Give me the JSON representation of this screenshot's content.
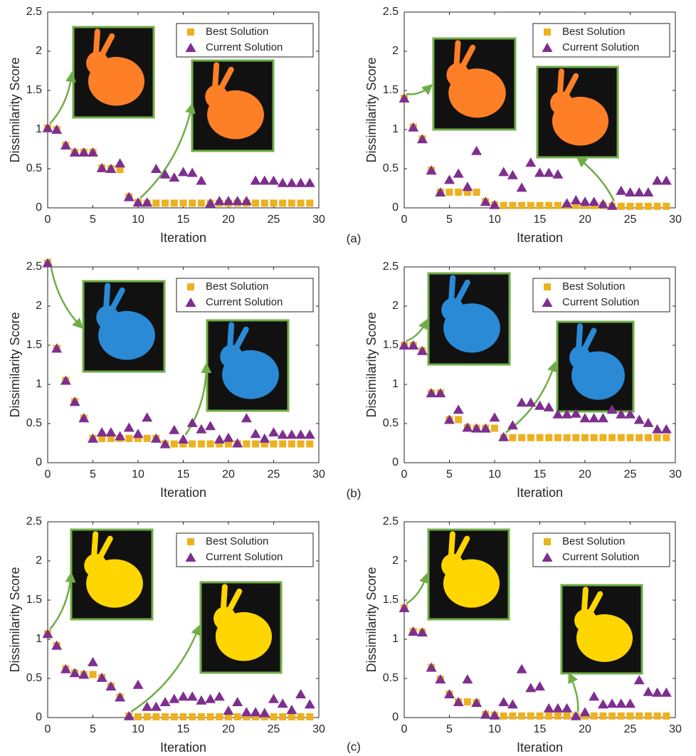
{
  "panel_labels": [
    "(a)",
    "(b)",
    "(c)"
  ],
  "chart_data": [
    {
      "type": "scatter",
      "xlabel": "Iteration",
      "ylabel": "Dissimilarity Score",
      "legend": "upper right",
      "x": [
        0,
        1,
        2,
        3,
        4,
        5,
        6,
        7,
        8,
        9,
        10,
        11,
        12,
        13,
        14,
        15,
        16,
        17,
        18,
        19,
        20,
        21,
        22,
        23,
        24,
        25,
        26,
        27,
        28,
        29
      ],
      "xlim": [
        0,
        30
      ],
      "xticks": [
        0,
        5,
        10,
        15,
        20,
        25,
        30
      ],
      "ylim": [
        0,
        2.5
      ],
      "yticks": [
        0,
        0.5,
        1,
        1.5,
        2,
        2.5
      ],
      "series": [
        {
          "name": "Best Solution",
          "color": "#EDB120",
          "marker": "square",
          "values": [
            1.02,
            1.0,
            0.8,
            0.71,
            0.71,
            0.71,
            0.51,
            0.5,
            0.49,
            0.14,
            0.07,
            0.06,
            0.06,
            0.06,
            0.06,
            0.06,
            0.06,
            0.06,
            0.06,
            0.06,
            0.06,
            0.06,
            0.06,
            0.06,
            0.06,
            0.06,
            0.06,
            0.06,
            0.06,
            0.06
          ]
        },
        {
          "name": "Current Solution",
          "color": "#7E2F8E",
          "marker": "triangle",
          "values": [
            1.02,
            1.0,
            0.8,
            0.71,
            0.71,
            0.71,
            0.51,
            0.5,
            0.57,
            0.14,
            0.07,
            0.07,
            0.5,
            0.43,
            0.39,
            0.46,
            0.45,
            0.35,
            0.06,
            0.09,
            0.09,
            0.09,
            0.09,
            0.35,
            0.35,
            0.35,
            0.32,
            0.32,
            0.32,
            0.32
          ]
        }
      ]
    },
    {
      "type": "scatter",
      "xlabel": "Iteration",
      "ylabel": "Dissimilarity Score",
      "legend": "upper right",
      "x": [
        0,
        1,
        2,
        3,
        4,
        5,
        6,
        7,
        8,
        9,
        10,
        11,
        12,
        13,
        14,
        15,
        16,
        17,
        18,
        19,
        20,
        21,
        22,
        23,
        24,
        25,
        26,
        27,
        28,
        29
      ],
      "xlim": [
        0,
        30
      ],
      "xticks": [
        0,
        5,
        10,
        15,
        20,
        25,
        30
      ],
      "ylim": [
        0,
        2.5
      ],
      "yticks": [
        0,
        0.5,
        1,
        1.5,
        2,
        2.5
      ],
      "series": [
        {
          "name": "Best Solution",
          "color": "#EDB120",
          "marker": "square",
          "values": [
            1.4,
            1.03,
            0.88,
            0.48,
            0.2,
            0.2,
            0.2,
            0.2,
            0.2,
            0.08,
            0.04,
            0.03,
            0.03,
            0.03,
            0.03,
            0.03,
            0.03,
            0.03,
            0.03,
            0.03,
            0.03,
            0.03,
            0.03,
            0.02,
            0.02,
            0.02,
            0.02,
            0.02,
            0.02,
            0.02
          ]
        },
        {
          "name": "Current Solution",
          "color": "#7E2F8E",
          "marker": "triangle",
          "values": [
            1.4,
            1.03,
            0.88,
            0.48,
            0.2,
            0.36,
            0.44,
            0.27,
            0.73,
            0.08,
            0.04,
            0.46,
            0.42,
            0.26,
            0.58,
            0.45,
            0.45,
            0.43,
            0.06,
            0.1,
            0.08,
            0.08,
            0.05,
            0.03,
            0.22,
            0.2,
            0.2,
            0.2,
            0.35,
            0.35
          ]
        }
      ]
    },
    {
      "type": "scatter",
      "xlabel": "Iteration",
      "ylabel": "Dissimilarity Score",
      "legend": "upper right",
      "x": [
        0,
        1,
        2,
        3,
        4,
        5,
        6,
        7,
        8,
        9,
        10,
        11,
        12,
        13,
        14,
        15,
        16,
        17,
        18,
        19,
        20,
        21,
        22,
        23,
        24,
        25,
        26,
        27,
        28,
        29
      ],
      "xlim": [
        0,
        30
      ],
      "xticks": [
        0,
        5,
        10,
        15,
        20,
        25,
        30
      ],
      "ylim": [
        0,
        2.5
      ],
      "yticks": [
        0,
        0.5,
        1,
        1.5,
        2,
        2.5
      ],
      "series": [
        {
          "name": "Best Solution",
          "color": "#EDB120",
          "marker": "square",
          "values": [
            2.55,
            1.46,
            1.05,
            0.78,
            0.57,
            0.31,
            0.31,
            0.31,
            0.31,
            0.31,
            0.31,
            0.31,
            0.31,
            0.24,
            0.24,
            0.24,
            0.24,
            0.24,
            0.24,
            0.24,
            0.24,
            0.24,
            0.24,
            0.24,
            0.24,
            0.24,
            0.24,
            0.24,
            0.24,
            0.24
          ]
        },
        {
          "name": "Current Solution",
          "color": "#7E2F8E",
          "marker": "triangle",
          "values": [
            2.55,
            1.46,
            1.05,
            0.78,
            0.57,
            0.31,
            0.39,
            0.39,
            0.34,
            0.45,
            0.37,
            0.58,
            0.31,
            0.24,
            0.42,
            0.3,
            0.51,
            0.43,
            0.47,
            0.3,
            0.32,
            0.25,
            0.57,
            0.37,
            0.31,
            0.39,
            0.36,
            0.36,
            0.36,
            0.36
          ]
        }
      ]
    },
    {
      "type": "scatter",
      "xlabel": "Iteration",
      "ylabel": "Dissimilarity Score",
      "legend": "upper right",
      "x": [
        0,
        1,
        2,
        3,
        4,
        5,
        6,
        7,
        8,
        9,
        10,
        11,
        12,
        13,
        14,
        15,
        16,
        17,
        18,
        19,
        20,
        21,
        22,
        23,
        24,
        25,
        26,
        27,
        28,
        29
      ],
      "xlim": [
        0,
        30
      ],
      "xticks": [
        0,
        5,
        10,
        15,
        20,
        25,
        30
      ],
      "ylim": [
        0,
        2.5
      ],
      "yticks": [
        0,
        0.5,
        1,
        1.5,
        2,
        2.5
      ],
      "series": [
        {
          "name": "Best Solution",
          "color": "#EDB120",
          "marker": "square",
          "values": [
            1.5,
            1.5,
            1.43,
            0.89,
            0.89,
            0.55,
            0.55,
            0.45,
            0.44,
            0.44,
            0.44,
            0.32,
            0.32,
            0.32,
            0.32,
            0.32,
            0.32,
            0.32,
            0.32,
            0.32,
            0.32,
            0.32,
            0.32,
            0.32,
            0.32,
            0.32,
            0.32,
            0.32,
            0.32,
            0.32
          ]
        },
        {
          "name": "Current Solution",
          "color": "#7E2F8E",
          "marker": "triangle",
          "values": [
            1.5,
            1.5,
            1.43,
            0.89,
            0.89,
            0.55,
            0.68,
            0.45,
            0.44,
            0.44,
            0.58,
            0.33,
            0.48,
            0.77,
            0.77,
            0.73,
            0.71,
            0.62,
            0.62,
            0.63,
            0.57,
            0.57,
            0.57,
            0.68,
            0.62,
            0.62,
            0.55,
            0.51,
            0.43,
            0.43
          ]
        }
      ]
    },
    {
      "type": "scatter",
      "xlabel": "Iteration",
      "ylabel": "Dissimilarity Score",
      "legend": "upper right",
      "x": [
        0,
        1,
        2,
        3,
        4,
        5,
        6,
        7,
        8,
        9,
        10,
        11,
        12,
        13,
        14,
        15,
        16,
        17,
        18,
        19,
        20,
        21,
        22,
        23,
        24,
        25,
        26,
        27,
        28,
        29
      ],
      "xlim": [
        0,
        30
      ],
      "xticks": [
        0,
        5,
        10,
        15,
        20,
        25,
        30
      ],
      "ylim": [
        0,
        2.5
      ],
      "yticks": [
        0,
        0.5,
        1,
        1.5,
        2,
        2.5
      ],
      "series": [
        {
          "name": "Best Solution",
          "color": "#EDB120",
          "marker": "square",
          "values": [
            1.07,
            0.92,
            0.62,
            0.57,
            0.55,
            0.55,
            0.51,
            0.4,
            0.26,
            0.02,
            0.01,
            0.01,
            0.01,
            0.01,
            0.01,
            0.01,
            0.01,
            0.01,
            0.01,
            0.01,
            0.01,
            0.01,
            0.01,
            0.01,
            0.01,
            0.01,
            0.01,
            0.01,
            0.01,
            0.01
          ]
        },
        {
          "name": "Current Solution",
          "color": "#7E2F8E",
          "marker": "triangle",
          "values": [
            1.07,
            0.92,
            0.62,
            0.57,
            0.55,
            0.71,
            0.51,
            0.4,
            0.26,
            0.02,
            0.42,
            0.14,
            0.14,
            0.2,
            0.24,
            0.27,
            0.27,
            0.22,
            0.24,
            0.27,
            0.09,
            0.2,
            0.07,
            0.07,
            0.06,
            0.24,
            0.18,
            0.1,
            0.3,
            0.17
          ]
        }
      ]
    },
    {
      "type": "scatter",
      "xlabel": "Iteration",
      "ylabel": "Dissimilarity Score",
      "legend": "upper right",
      "x": [
        0,
        1,
        2,
        3,
        4,
        5,
        6,
        7,
        8,
        9,
        10,
        11,
        12,
        13,
        14,
        15,
        16,
        17,
        18,
        19,
        20,
        21,
        22,
        23,
        24,
        25,
        26,
        27,
        28,
        29
      ],
      "xlim": [
        0,
        30
      ],
      "xticks": [
        0,
        5,
        10,
        15,
        20,
        25,
        30
      ],
      "ylim": [
        0,
        2.5
      ],
      "yticks": [
        0,
        0.5,
        1,
        1.5,
        2,
        2.5
      ],
      "series": [
        {
          "name": "Best Solution",
          "color": "#EDB120",
          "marker": "square",
          "values": [
            1.4,
            1.1,
            1.09,
            0.64,
            0.49,
            0.3,
            0.2,
            0.2,
            0.19,
            0.04,
            0.03,
            0.02,
            0.02,
            0.02,
            0.02,
            0.02,
            0.02,
            0.02,
            0.02,
            0.02,
            0.02,
            0.02,
            0.02,
            0.02,
            0.02,
            0.02,
            0.02,
            0.02,
            0.02,
            0.02
          ]
        },
        {
          "name": "Current Solution",
          "color": "#7E2F8E",
          "marker": "triangle",
          "values": [
            1.4,
            1.1,
            1.09,
            0.64,
            0.49,
            0.3,
            0.2,
            0.49,
            0.19,
            0.04,
            0.03,
            0.2,
            0.17,
            0.62,
            0.38,
            0.4,
            0.12,
            0.12,
            0.12,
            0.02,
            0.07,
            0.27,
            0.17,
            0.18,
            0.18,
            0.18,
            0.48,
            0.33,
            0.32,
            0.32
          ]
        }
      ]
    }
  ]
}
